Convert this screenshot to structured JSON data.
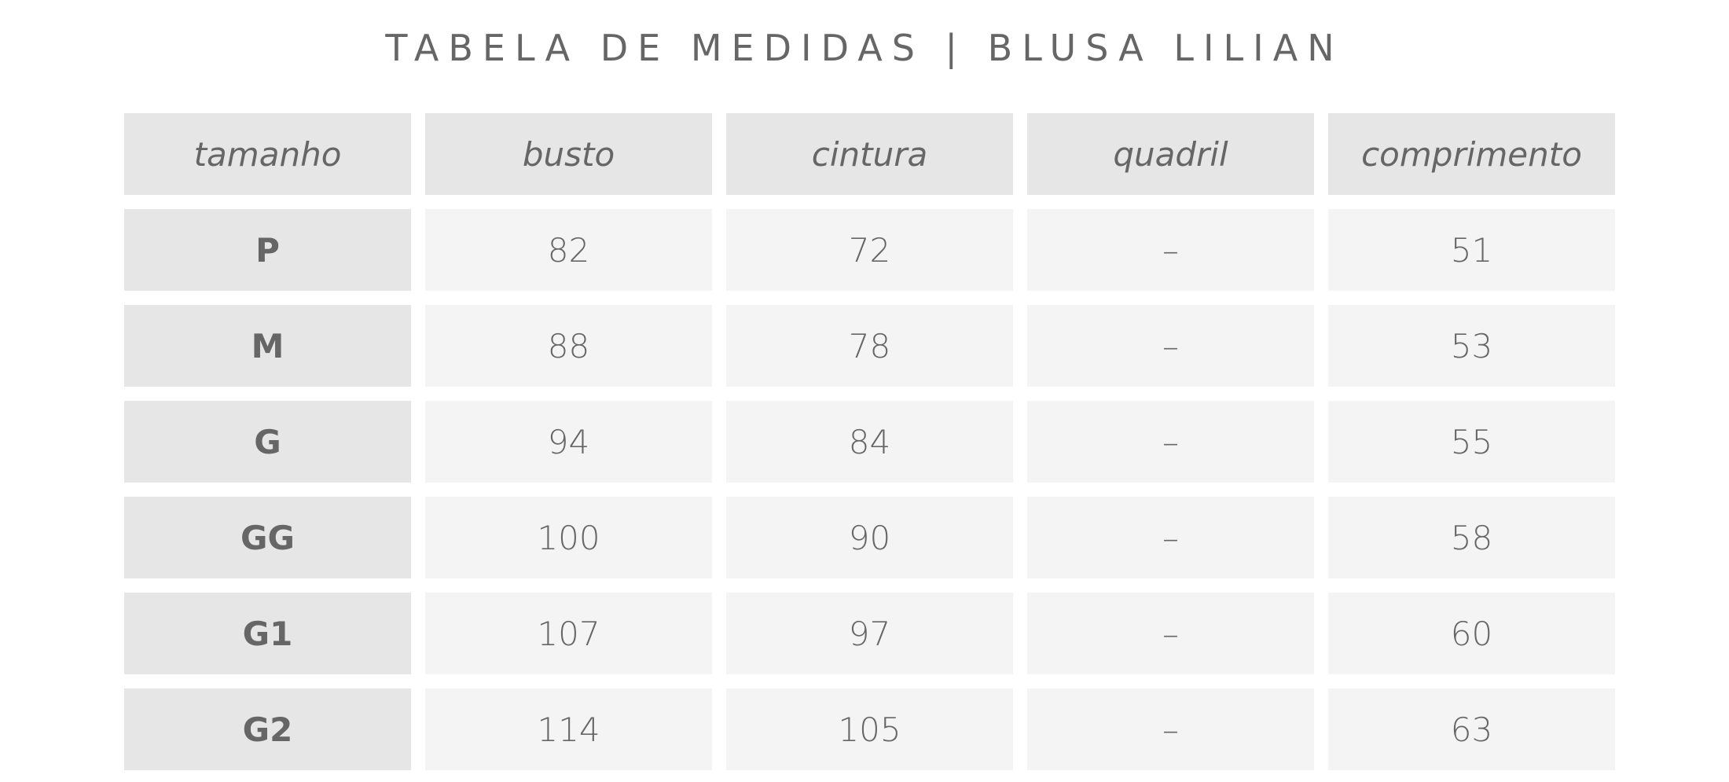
{
  "title": "TABELA DE MEDIDAS | BLUSA LILIAN",
  "headers": [
    "tamanho",
    "busto",
    "cintura",
    "quadril",
    "comprimento"
  ],
  "rows": [
    [
      "P",
      "82",
      "72",
      "–",
      "51"
    ],
    [
      "M",
      "88",
      "78",
      "–",
      "53"
    ],
    [
      "G",
      "94",
      "84",
      "–",
      "55"
    ],
    [
      "GG",
      "100",
      "90",
      "–",
      "58"
    ],
    [
      "G1",
      "107",
      "97",
      "–",
      "60"
    ],
    [
      "G2",
      "114",
      "105",
      "–",
      "63"
    ]
  ],
  "colors": {
    "header_bg": "#e6e6e6",
    "cell_bg": "#f4f4f4",
    "text": "#666666"
  }
}
